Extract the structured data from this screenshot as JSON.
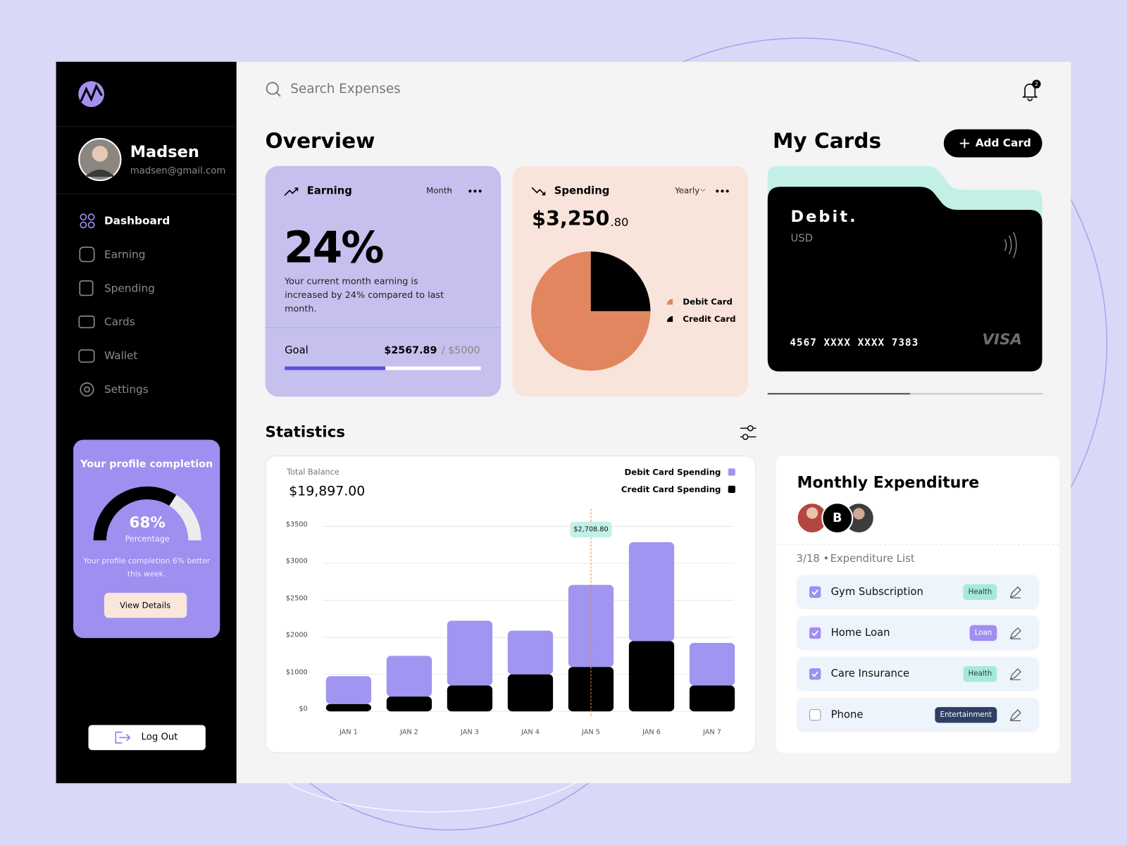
{
  "sidebar": {
    "user": {
      "name": "Madsen",
      "email": "madsen@gmail.com"
    },
    "nav": [
      "Dashboard",
      "Earning",
      "Spending",
      "Cards",
      "Wallet",
      "Settings"
    ],
    "profile": {
      "title": "Your profile completion",
      "value": 68,
      "value_label": "68%",
      "caption": "Percentage",
      "note": "Your profile completion 6% better this week.",
      "button": "View Details"
    },
    "logout": "Log Out"
  },
  "header": {
    "search_placeholder": "Search Expenses",
    "notifications": 2
  },
  "overview": {
    "title": "Overview",
    "earning": {
      "title": "Earning",
      "period": "Month",
      "value": 24,
      "value_label": "24%",
      "description": "Your current month earning is increased by 24% compared to last month.",
      "goal": {
        "label": "Goal",
        "current": 2567.89,
        "current_label": "$2567.89",
        "target": 5000,
        "target_label": "/ $5000"
      }
    },
    "spending": {
      "title": "Spending",
      "period": "Yearly",
      "amount_label": "$3,250",
      "cents_label": ".80",
      "chart_data": {
        "type": "pie",
        "categories": [
          "Debit Card",
          "Credit Card"
        ],
        "values": [
          75,
          25
        ],
        "colors": [
          "#e28660",
          "#000000"
        ]
      }
    }
  },
  "cards": {
    "title": "My Cards",
    "add_button": "Add Card",
    "card": {
      "type": "Debit.",
      "currency": "USD",
      "number": "4567 XXXX XXXX 7383",
      "brand": "VISA"
    }
  },
  "statistics": {
    "title": "Statistics",
    "balance_label": "Total Balance",
    "balance": "$19,897.00",
    "chart_data": {
      "type": "bar",
      "stacked": true,
      "categories": [
        "JAN 1",
        "JAN 2",
        "JAN 3",
        "JAN 4",
        "JAN 5",
        "JAN 6",
        "JAN 7"
      ],
      "series": [
        {
          "name": "Credit Card Spending",
          "color": "#000000",
          "values": [
            200,
            400,
            700,
            1000,
            1200,
            1900,
            700
          ]
        },
        {
          "name": "Debit Card Spending",
          "color": "#a095f0",
          "values": [
            750,
            1100,
            1525,
            1090,
            1508.8,
            1385,
            1150
          ]
        }
      ],
      "ylim": [
        0,
        3500
      ],
      "yticks": [
        {
          "value": 0,
          "label": "$0"
        },
        {
          "value": 1000,
          "label": "$1000"
        },
        {
          "value": 2000,
          "label": "$2000"
        },
        {
          "value": 2500,
          "label": "$2500"
        },
        {
          "value": 3000,
          "label": "$3000"
        },
        {
          "value": 3500,
          "label": "$3500"
        }
      ],
      "grid": true,
      "tooltip": {
        "category": "JAN 5",
        "label": "$2,708.80"
      }
    }
  },
  "expenditure": {
    "title": "Monthly Expenditure",
    "avatar_letter": "B",
    "count": "3/18 •",
    "list_title": "Expenditure List",
    "items": [
      {
        "name": "Gym Subscription",
        "tag": "Health",
        "checked": true,
        "tag_color": "#a6e9dc",
        "tag_text_color": "#1d3b36"
      },
      {
        "name": "Home Loan",
        "tag": "Loan",
        "checked": true,
        "tag_color": "#9f8ff0",
        "tag_text_color": "#ffffff"
      },
      {
        "name": "Care Insurance",
        "tag": "Health",
        "checked": true,
        "tag_color": "#a6e9dc",
        "tag_text_color": "#1d3b36"
      },
      {
        "name": "Phone",
        "tag": "Entertainment",
        "checked": false,
        "tag_color": "#2d3f63",
        "tag_text_color": "#ffffff"
      }
    ]
  }
}
